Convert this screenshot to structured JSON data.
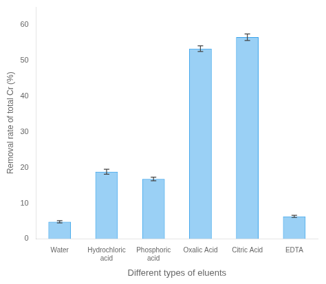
{
  "chart_data": {
    "type": "bar",
    "categories": [
      "Water",
      "Hydrochloric\nacid",
      "Phosphoric\nacid",
      "Oxalic Acid",
      "Citric Acid",
      "EDTA"
    ],
    "values": [
      4.8,
      18.8,
      16.8,
      53.3,
      56.5,
      6.3
    ],
    "errors": [
      0.3,
      0.7,
      0.5,
      0.8,
      0.9,
      0.3
    ],
    "xlabel": "Different types of eluents",
    "ylabel": "Removal rate of total Cr (%)",
    "ylim": [
      0,
      65
    ],
    "yticks": [
      0,
      10,
      20,
      30,
      40,
      50,
      60
    ],
    "grid": false
  }
}
